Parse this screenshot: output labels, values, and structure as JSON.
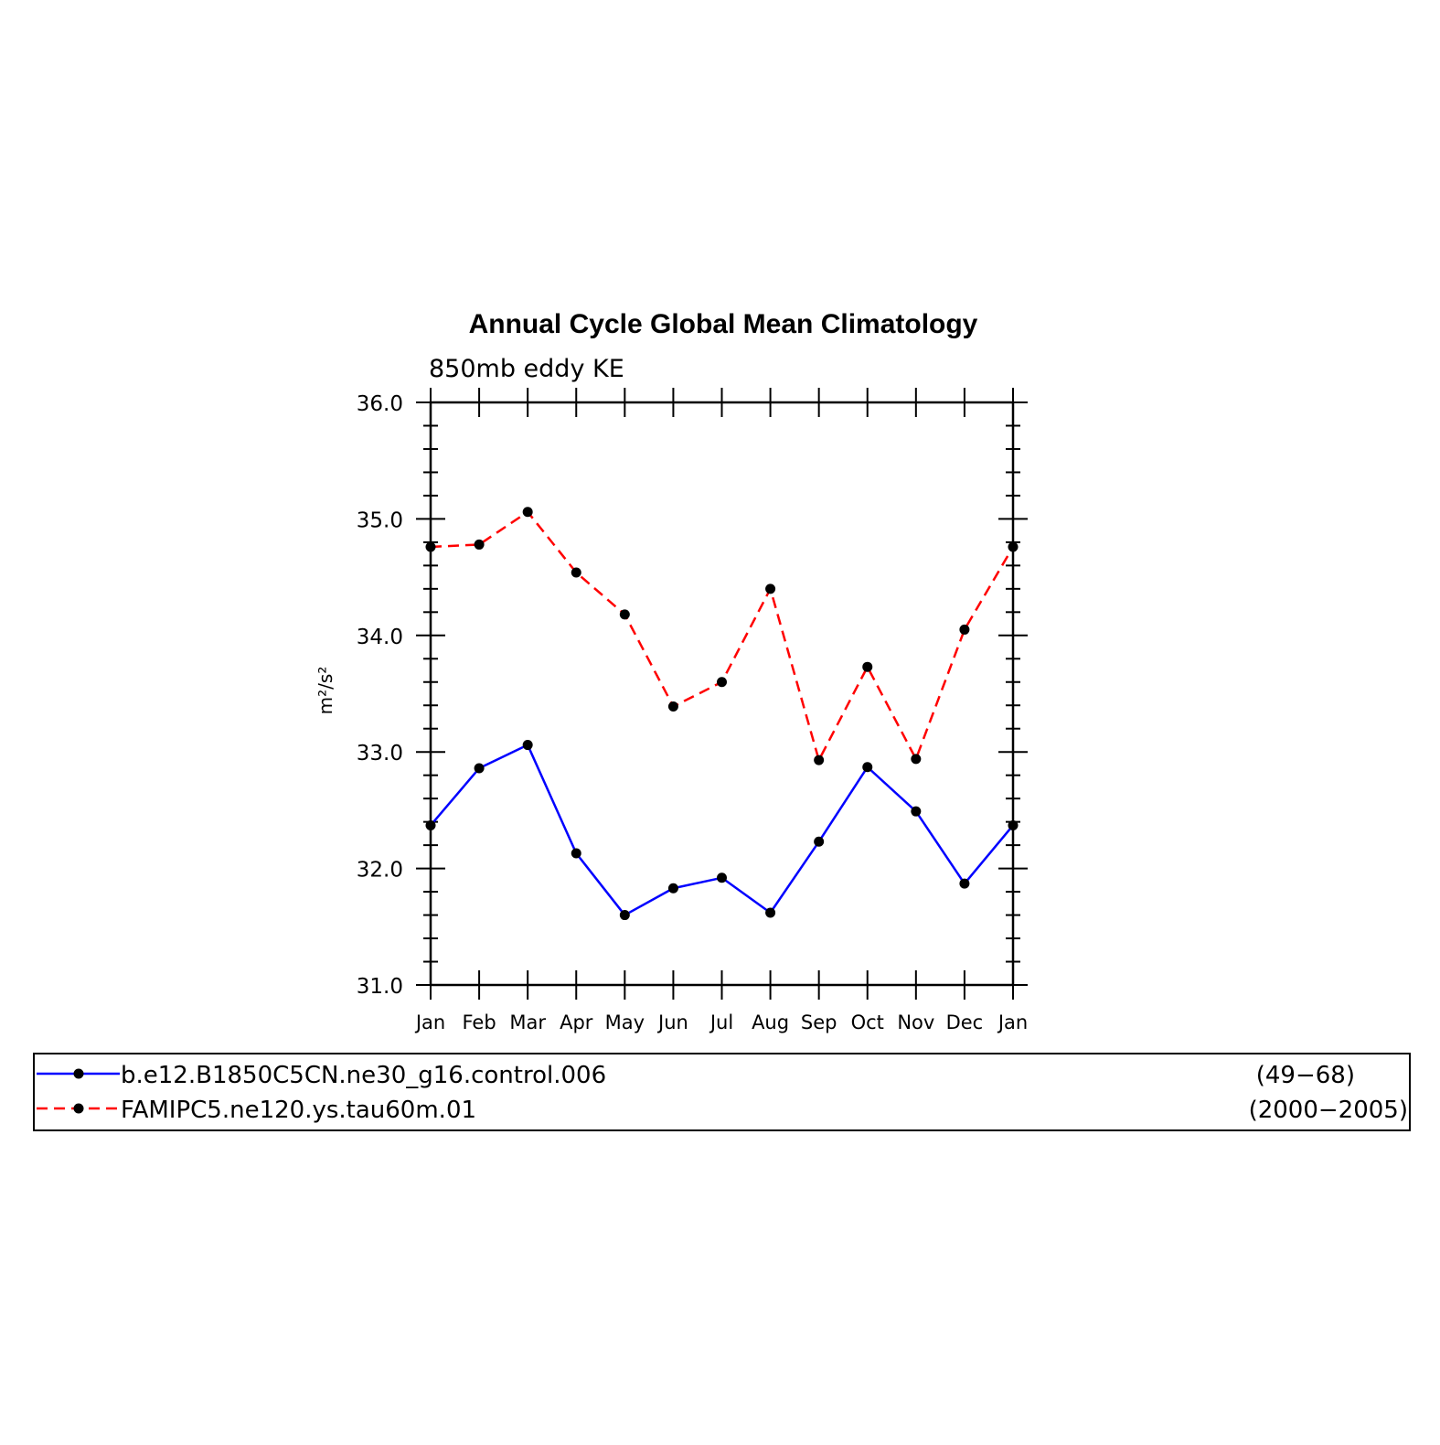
{
  "chart_data": {
    "type": "line",
    "title": "Annual Cycle Global Mean Climatology",
    "subtitle": "850mb eddy KE",
    "ylabel": "m²/s²",
    "xlabel": "",
    "categories": [
      "Jan",
      "Feb",
      "Mar",
      "Apr",
      "May",
      "Jun",
      "Jul",
      "Aug",
      "Sep",
      "Oct",
      "Nov",
      "Dec",
      "Jan"
    ],
    "ylim": [
      31.0,
      36.0
    ],
    "yticks": [
      "31.0",
      "32.0",
      "33.0",
      "34.0",
      "35.0",
      "36.0"
    ],
    "grid": false,
    "legend_position": "bottom",
    "series": [
      {
        "name": "b.e12.B1850C5CN.ne30_g16.control.006",
        "years": "(49−68)",
        "color": "#0000ff",
        "dash": "solid",
        "marker": "circle",
        "values": [
          32.37,
          32.86,
          33.06,
          32.13,
          31.6,
          31.83,
          31.92,
          31.62,
          32.23,
          32.87,
          32.49,
          31.87,
          32.37
        ]
      },
      {
        "name": "FAMIPC5.ne120.ys.tau60m.01",
        "years": "(2000−2005)",
        "color": "#ff0000",
        "dash": "dashed",
        "marker": "circle",
        "values": [
          34.76,
          34.78,
          35.06,
          34.54,
          34.18,
          33.39,
          33.6,
          34.4,
          32.93,
          33.73,
          32.94,
          34.05,
          34.76
        ]
      }
    ]
  }
}
